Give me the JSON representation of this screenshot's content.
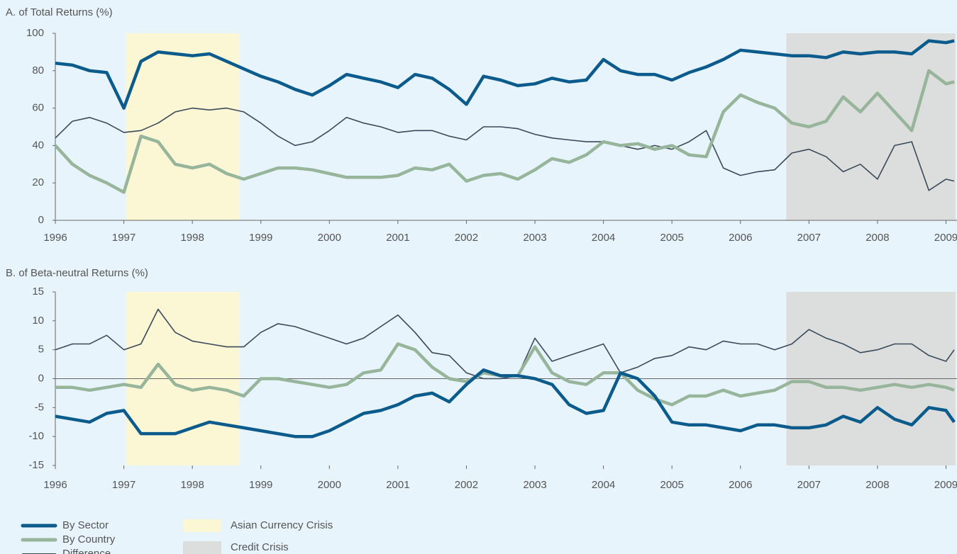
{
  "chart_data": [
    {
      "type": "line",
      "title": "A. of Total Returns (%)",
      "x": [
        1996,
        1996.25,
        1996.5,
        1996.75,
        1997,
        1997.25,
        1997.5,
        1997.75,
        1998,
        1998.25,
        1998.5,
        1998.75,
        1999,
        1999.25,
        1999.5,
        1999.75,
        2000,
        2000.25,
        2000.5,
        2000.75,
        2001,
        2001.25,
        2001.5,
        2001.75,
        2002,
        2002.25,
        2002.5,
        2002.75,
        2003,
        2003.25,
        2003.5,
        2003.75,
        2004,
        2004.25,
        2004.5,
        2004.75,
        2005,
        2005.25,
        2005.5,
        2005.75,
        2006,
        2006.25,
        2006.5,
        2006.75,
        2007,
        2007.25,
        2007.5,
        2007.75,
        2008,
        2008.25,
        2008.5,
        2008.75,
        2009,
        2009.12
      ],
      "series": [
        {
          "name": "By Sector",
          "color": "#0b5c8c",
          "values": [
            84,
            83,
            80,
            79,
            60,
            85,
            90,
            89,
            88,
            89,
            85,
            81,
            77,
            74,
            70,
            67,
            72,
            78,
            76,
            74,
            71,
            78,
            76,
            70,
            62,
            77,
            75,
            72,
            73,
            76,
            74,
            75,
            86,
            80,
            78,
            78,
            75,
            79,
            82,
            86,
            91,
            90,
            89,
            88,
            88,
            87,
            90,
            89,
            90,
            90,
            89,
            96,
            95,
            96
          ]
        },
        {
          "name": "By Country",
          "color": "#97b59a",
          "values": [
            40,
            30,
            24,
            20,
            15,
            45,
            42,
            30,
            28,
            30,
            25,
            22,
            25,
            28,
            28,
            27,
            25,
            23,
            23,
            23,
            24,
            28,
            27,
            30,
            21,
            24,
            25,
            22,
            27,
            33,
            31,
            35,
            42,
            40,
            41,
            38,
            40,
            35,
            34,
            58,
            67,
            63,
            60,
            52,
            50,
            53,
            66,
            58,
            68,
            58,
            48,
            80,
            73,
            74
          ]
        },
        {
          "name": "Difference",
          "color": "#3b4a5a",
          "values": [
            44,
            53,
            55,
            52,
            47,
            48,
            52,
            58,
            60,
            59,
            60,
            58,
            52,
            45,
            40,
            42,
            48,
            55,
            52,
            50,
            47,
            48,
            48,
            45,
            43,
            50,
            50,
            49,
            46,
            44,
            43,
            42,
            42,
            40,
            38,
            40,
            38,
            42,
            48,
            28,
            24,
            26,
            27,
            36,
            38,
            34,
            26,
            30,
            22,
            40,
            42,
            16,
            22,
            21
          ]
        }
      ],
      "shading": [
        {
          "label": "Asian Currency Crisis",
          "start": 1997.03,
          "end": 1998.68,
          "color": "#fbf6d4"
        },
        {
          "label": "Credit Crisis",
          "start": 2006.67,
          "end": 2009.14,
          "color": "#dcdddd"
        }
      ],
      "xlim": [
        1996,
        2009.14
      ],
      "xticks": [
        1996,
        1997,
        1998,
        1999,
        2000,
        2001,
        2002,
        2003,
        2004,
        2005,
        2006,
        2007,
        2008,
        2009
      ],
      "ylim": [
        0,
        100
      ],
      "yticks": [
        0,
        20,
        40,
        60,
        80,
        100
      ]
    },
    {
      "type": "line",
      "title": "B. of Beta-neutral Returns (%)",
      "x": [
        1996,
        1996.25,
        1996.5,
        1996.75,
        1997,
        1997.25,
        1997.5,
        1997.75,
        1998,
        1998.25,
        1998.5,
        1998.75,
        1999,
        1999.25,
        1999.5,
        1999.75,
        2000,
        2000.25,
        2000.5,
        2000.75,
        2001,
        2001.25,
        2001.5,
        2001.75,
        2002,
        2002.25,
        2002.5,
        2002.75,
        2003,
        2003.25,
        2003.5,
        2003.75,
        2004,
        2004.25,
        2004.5,
        2004.75,
        2005,
        2005.25,
        2005.5,
        2005.75,
        2006,
        2006.25,
        2006.5,
        2006.75,
        2007,
        2007.25,
        2007.5,
        2007.75,
        2008,
        2008.25,
        2008.5,
        2008.75,
        2009,
        2009.12
      ],
      "series": [
        {
          "name": "By Sector",
          "color": "#0b5c8c",
          "values": [
            -6.5,
            -7,
            -7.5,
            -6,
            -5.5,
            -9.5,
            -9.5,
            -9.5,
            -8.5,
            -7.5,
            -8,
            -8.5,
            -9,
            -9.5,
            -10,
            -10,
            -9,
            -7.5,
            -6,
            -5.5,
            -4.5,
            -3,
            -2.5,
            -4,
            -1,
            1.5,
            0.5,
            0.5,
            0,
            -1,
            -4.5,
            -6,
            -5.5,
            1,
            0,
            -3,
            -7.5,
            -8,
            -8,
            -8.5,
            -9,
            -8,
            -8,
            -8.5,
            -8.5,
            -8,
            -6.5,
            -7.5,
            -5,
            -7,
            -8,
            -5,
            -5.5,
            -7.5
          ]
        },
        {
          "name": "By Country",
          "color": "#97b59a",
          "values": [
            -1.5,
            -1.5,
            -2,
            -1.5,
            -1,
            -1.5,
            2.5,
            -1,
            -2,
            -1.5,
            -2,
            -3,
            0,
            0,
            -0.5,
            -1,
            -1.5,
            -1,
            1,
            1.5,
            6,
            5,
            2,
            0,
            -0.5,
            1,
            0.5,
            0.5,
            5.5,
            1,
            -0.5,
            -1,
            1,
            1,
            -2,
            -3.5,
            -4.5,
            -3,
            -3,
            -2,
            -3,
            -2.5,
            -2,
            -0.5,
            -0.5,
            -1.5,
            -1.5,
            -2,
            -1.5,
            -1,
            -1.5,
            -1,
            -1.5,
            -2
          ]
        },
        {
          "name": "Difference",
          "color": "#3b4a5a",
          "values": [
            5,
            6,
            6,
            7.5,
            5,
            6,
            12,
            8,
            6.5,
            6,
            5.5,
            5.5,
            8,
            9.5,
            9,
            8,
            7,
            6,
            7,
            9,
            11,
            8,
            4.5,
            4,
            1,
            0,
            0,
            0.5,
            7,
            3,
            4,
            5,
            6,
            1,
            2,
            3.5,
            4,
            5.5,
            5,
            6.5,
            6,
            6,
            5,
            6,
            8.5,
            7,
            6,
            4.5,
            5,
            6,
            6,
            4,
            3,
            5
          ]
        }
      ],
      "shading": [
        {
          "label": "Asian Currency Crisis",
          "start": 1997.03,
          "end": 1998.68,
          "color": "#fbf6d4"
        },
        {
          "label": "Credit Crisis",
          "start": 2006.67,
          "end": 2009.14,
          "color": "#dcdddd"
        }
      ],
      "xlim": [
        1996,
        2009.14
      ],
      "xticks": [
        1996,
        1997,
        1998,
        1999,
        2000,
        2001,
        2002,
        2003,
        2004,
        2005,
        2006,
        2007,
        2008,
        2009
      ],
      "ylim": [
        -15,
        15
      ],
      "yticks": [
        -15,
        -10,
        -5,
        0,
        5,
        10,
        15
      ]
    }
  ]
}
